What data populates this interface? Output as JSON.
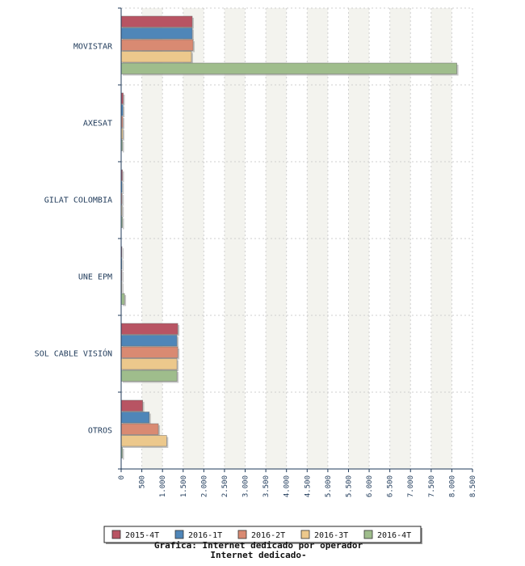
{
  "chart_data": {
    "type": "bar",
    "orientation": "horizontal",
    "categories": [
      "MOVISTAR",
      "AXESAT",
      "GILAT COLOMBIA",
      "UNE EPM",
      "SOL CABLE VISIÓN",
      "OTROS"
    ],
    "series": [
      {
        "name": "2015-4T",
        "color": "#b85463",
        "values": [
          1720,
          50,
          30,
          15,
          1370,
          520
        ]
      },
      {
        "name": "2016-1T",
        "color": "#4f86b8",
        "values": [
          1720,
          45,
          25,
          15,
          1350,
          680
        ]
      },
      {
        "name": "2016-2T",
        "color": "#d98a72",
        "values": [
          1740,
          40,
          25,
          20,
          1370,
          900
        ]
      },
      {
        "name": "2016-3T",
        "color": "#ecc88c",
        "values": [
          1700,
          40,
          25,
          20,
          1350,
          1100
        ]
      },
      {
        "name": "2016-4T",
        "color": "#9fbd8c",
        "values": [
          8120,
          30,
          30,
          80,
          1350,
          30
        ]
      }
    ],
    "xlim": [
      0,
      8500
    ],
    "xticks": [
      "0",
      "500",
      "1.000",
      "1.500",
      "2.000",
      "2.500",
      "3.000",
      "3.500",
      "4.000",
      "4.500",
      "5.000",
      "5.500",
      "6.000",
      "6.500",
      "7.000",
      "7.500",
      "8.000",
      "8.500"
    ],
    "grid": true,
    "legend": "bottom",
    "title": "Grafica: Internet dedicado por operador",
    "subtitle": "Internet dedicado-"
  }
}
